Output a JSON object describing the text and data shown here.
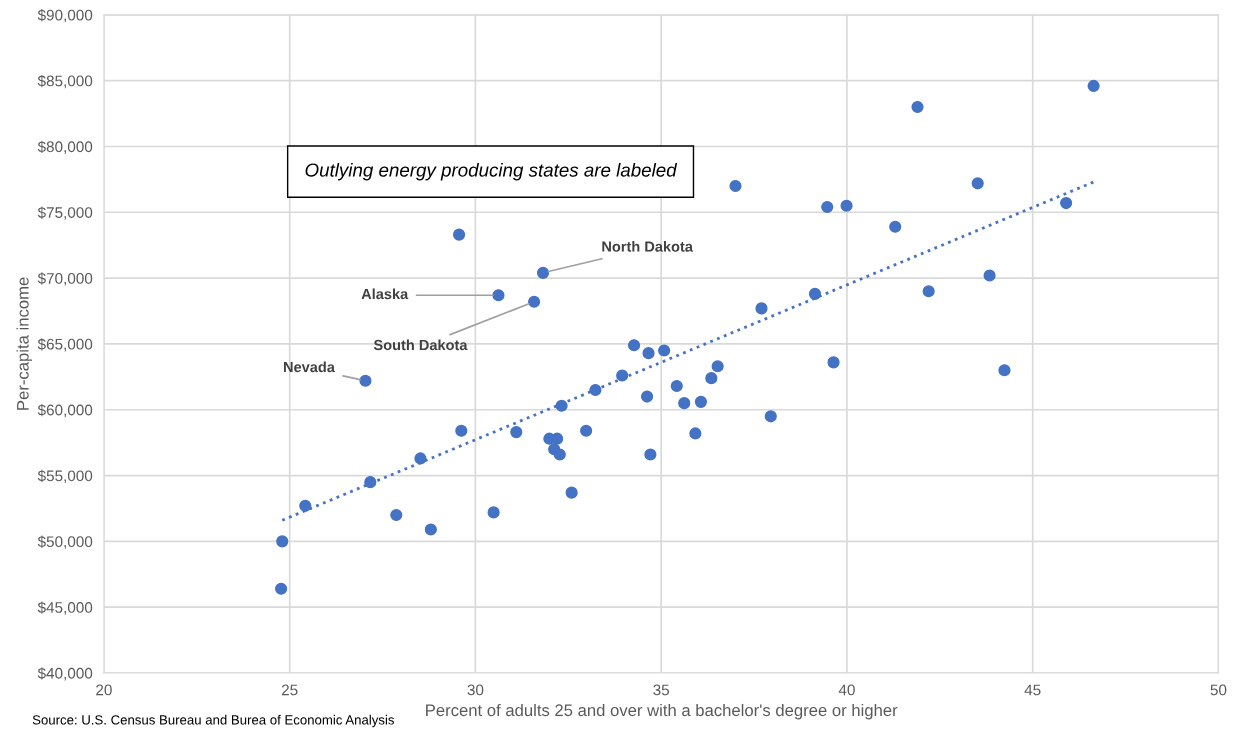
{
  "chart_data": {
    "type": "scatter",
    "xlabel": "Percent of adults 25 and over with a bachelor's degree or higher",
    "ylabel": "Per-capita income",
    "xlim": [
      20,
      50
    ],
    "xticks": [
      20,
      25,
      30,
      35,
      40,
      45,
      50
    ],
    "ylim": [
      40000,
      90000
    ],
    "yticks": [
      {
        "value": 40000,
        "label": "$40,000"
      },
      {
        "value": 45000,
        "label": "$45,000"
      },
      {
        "value": 50000,
        "label": "$50,000"
      },
      {
        "value": 55000,
        "label": "$55,000"
      },
      {
        "value": 60000,
        "label": "$60,000"
      },
      {
        "value": 65000,
        "label": "$65,000"
      },
      {
        "value": 70000,
        "label": "$70,000"
      },
      {
        "value": 75000,
        "label": "$75,000"
      },
      {
        "value": 80000,
        "label": "$80,000"
      },
      {
        "value": 85000,
        "label": "$85,000"
      },
      {
        "value": 90000,
        "label": "$90,000"
      }
    ],
    "grid": true,
    "series": [
      {
        "color": "#4472c4",
        "marker": "circle",
        "x": [
          30.62,
          27.04,
          29.62,
          28.52,
          27.17,
          25.42,
          24.8,
          24.77,
          27.87,
          28.8,
          30.49,
          31.1,
          31.58,
          31.99,
          32.2,
          32.12,
          32.27,
          32.32,
          32.59,
          32.98,
          33.23,
          33.95,
          34.27,
          34.66,
          35.08,
          34.62,
          34.71,
          35.42,
          35.62,
          36.07,
          35.92,
          36.35,
          36.52,
          37.7,
          37.95,
          39.14,
          39.64,
          41.9,
          46.64,
          37.0,
          43.52,
          39.47,
          39.99,
          45.9,
          41.3,
          43.84,
          42.2,
          44.24,
          29.56,
          31.82
        ],
        "values": [
          68700,
          62200,
          58400,
          56300,
          54500,
          52700,
          50000,
          46400,
          52000,
          50900,
          52200,
          58300,
          68200,
          57800,
          57800,
          57000,
          56600,
          60300,
          53700,
          58400,
          61500,
          62600,
          64900,
          64300,
          64500,
          61000,
          56600,
          61800,
          60500,
          60600,
          58200,
          62400,
          63300,
          67700,
          59500,
          68800,
          63600,
          83000,
          84600,
          77000,
          77200,
          75400,
          75500,
          75700,
          73900,
          70200,
          69000,
          63000,
          73300,
          70400
        ]
      },
      {
        "type": "line",
        "color": "#4472c4",
        "marker": "none",
        "line_style": "dotted",
        "x": [
          24.8,
          46.64
        ],
        "values": [
          51600,
          77300
        ]
      }
    ],
    "annotations": [
      {
        "text": "Alaska",
        "x": 30.62,
        "y": 68700
      },
      {
        "text": "Nevada",
        "x": 27.04,
        "y": 62200
      },
      {
        "text": "South Dakota",
        "x": 31.58,
        "y": 68200
      },
      {
        "text": "North Dakota",
        "x": 31.82,
        "y": 70400
      },
      "Outlying energy producing states are labeled",
      "Source: U.S. Census Bureau and Burea of Economic Analysis"
    ]
  }
}
